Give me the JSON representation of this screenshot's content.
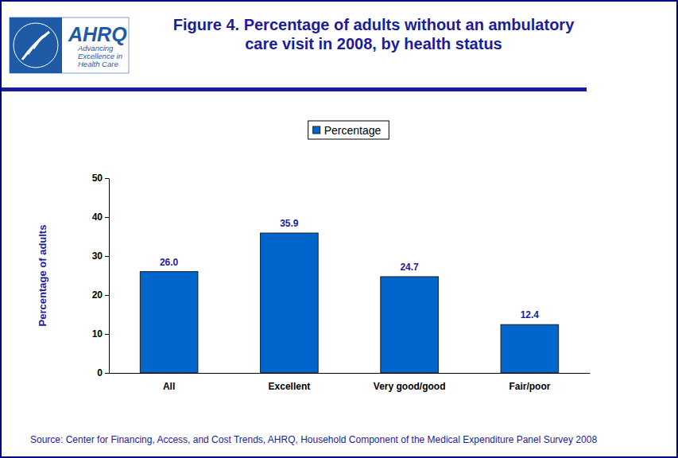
{
  "chart_data": {
    "type": "bar",
    "title": "Figure 4. Percentage of adults without an ambulatory care visit in 2008, by health status",
    "y_label": "Percentage of adults",
    "source": "Source: Center for Financing, Access, and Cost Trends, AHRQ, Household Component of the Medical Expenditure Panel Survey 2008",
    "categories": [
      "All",
      "Excellent",
      "Very good/good",
      "Fair/poor"
    ],
    "series": [
      {
        "name": "Percentage",
        "color": "#0066cc",
        "values": [
          26.0,
          35.9,
          24.7,
          12.4
        ],
        "value_labels": [
          "26.0",
          "35.9",
          "24.7",
          "12.4"
        ]
      }
    ],
    "ylim": [
      0,
      50
    ],
    "yticks": [
      0,
      10,
      20,
      30,
      40,
      50
    ],
    "grid": false,
    "legend": "top",
    "data_labels": true
  },
  "logo": {
    "name": "AHRQ",
    "tagline": [
      "Advancing",
      "Excellence in",
      "Health Care"
    ]
  }
}
